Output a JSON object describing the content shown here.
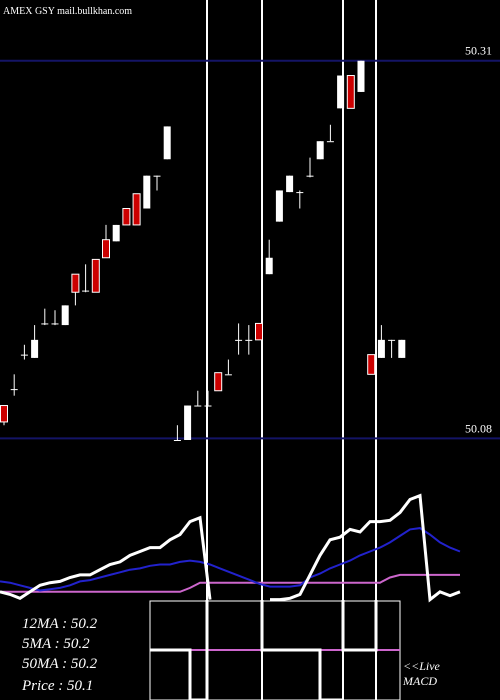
{
  "chart_data": [
    {
      "type": "candlestick",
      "title": "AMEX  GSY mail.bullkhan.com",
      "open": [
        50.1,
        50.11,
        50.131,
        50.129,
        50.15,
        50.15,
        50.149,
        50.18,
        50.17,
        50.189,
        50.201,
        50.2,
        50.22,
        50.229,
        50.22,
        50.24,
        50.25,
        50.079,
        50.079,
        50.1,
        50.1,
        50.12,
        50.119,
        50.14,
        50.14,
        50.15,
        50.18,
        50.212,
        50.23,
        50.23,
        50.24,
        50.25,
        50.261,
        50.281,
        50.301,
        50.291,
        50.131,
        50.129,
        50.14,
        50.129
      ],
      "high": [
        50.1,
        50.119,
        50.137,
        50.149,
        50.159,
        50.158,
        50.161,
        50.18,
        50.186,
        50.189,
        50.21,
        50.21,
        50.22,
        50.229,
        50.24,
        50.24,
        50.27,
        50.088,
        50.1,
        50.109,
        50.109,
        50.12,
        50.128,
        50.15,
        50.149,
        50.15,
        50.201,
        50.231,
        50.24,
        50.231,
        50.251,
        50.261,
        50.271,
        50.301,
        50.301,
        50.31,
        50.131,
        50.149,
        50.14,
        50.14
      ],
      "low": [
        50.088,
        50.106,
        50.128,
        50.129,
        50.149,
        50.149,
        50.149,
        50.161,
        50.169,
        50.169,
        50.19,
        50.2,
        50.21,
        50.21,
        50.22,
        50.231,
        50.25,
        50.079,
        50.079,
        50.1,
        50.1,
        50.109,
        50.119,
        50.131,
        50.131,
        50.14,
        50.18,
        50.212,
        50.23,
        50.22,
        50.239,
        50.25,
        50.261,
        50.281,
        50.281,
        50.291,
        50.119,
        50.129,
        50.129,
        50.129
      ],
      "close": [
        50.09,
        50.11,
        50.131,
        50.14,
        50.15,
        50.15,
        50.161,
        50.169,
        50.17,
        50.169,
        50.19,
        50.21,
        50.21,
        50.21,
        50.24,
        50.24,
        50.27,
        50.079,
        50.1,
        50.1,
        50.1,
        50.109,
        50.119,
        50.14,
        50.14,
        50.14,
        50.19,
        50.231,
        50.24,
        50.23,
        50.24,
        50.261,
        50.261,
        50.301,
        50.281,
        50.31,
        50.119,
        50.14,
        50.14,
        50.14
      ],
      "up_color": "#ffffff",
      "down_color": "#cc0000",
      "grid_color": "#141466",
      "ylim": [
        50.079,
        50.347
      ],
      "yticks": [
        50.08,
        50.31
      ],
      "grid": true
    },
    {
      "type": "line",
      "series": [
        {
          "color": "#ffffff",
          "values": [
            14,
            12,
            9,
            14,
            19,
            21,
            22,
            25,
            27,
            27,
            31,
            35,
            37,
            42,
            45,
            48,
            48,
            54,
            58,
            68,
            71,
            8,
            null,
            null,
            null,
            null,
            null,
            8,
            8,
            9,
            12,
            27,
            42,
            54,
            56,
            62,
            60,
            68,
            68,
            69,
            75,
            85,
            88,
            8,
            14,
            11,
            14
          ]
        },
        {
          "color": "#2222cc",
          "values": [
            22,
            21,
            19,
            17,
            15,
            16,
            17,
            19,
            22,
            23,
            25,
            27,
            29,
            31,
            32,
            34,
            35,
            35,
            37,
            38,
            37,
            35,
            32,
            29,
            26,
            23,
            20,
            18,
            18,
            18,
            19,
            25,
            28,
            32,
            35,
            38,
            42,
            45,
            48,
            52,
            57,
            62,
            63,
            58,
            52,
            48,
            45
          ]
        },
        {
          "color": "#cc66cc",
          "values": [
            14,
            14,
            14,
            14,
            14,
            14,
            14,
            14,
            14,
            14,
            14,
            14,
            14,
            14,
            14,
            14,
            14,
            14,
            14,
            17,
            21,
            21,
            21,
            21,
            21,
            21,
            21,
            21,
            21,
            21,
            21,
            21,
            21,
            21,
            21,
            21,
            21,
            21,
            21,
            25,
            27,
            27,
            27,
            27,
            27,
            27,
            27
          ]
        }
      ],
      "ylim": [
        0,
        100
      ],
      "annotations": [
        "12MA : 50.2",
        "5MA : 50.2",
        "50MA : 50.2",
        "Price  : 50.1",
        "<<Live",
        "MACD"
      ]
    }
  ]
}
